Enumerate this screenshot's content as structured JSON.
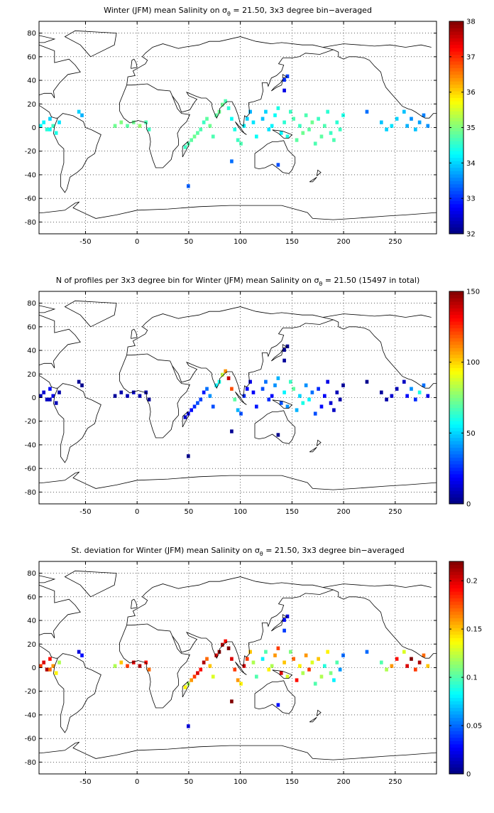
{
  "figure": {
    "background": "#ffffff"
  },
  "chart_data": [
    {
      "type": "heatmap",
      "title": "Winter (JFM) mean Salinity on σ",
      "title_sub": "θ",
      "title_tail": " = 21.50, 3x3 degree bin−averaged",
      "xlim": [
        -95,
        290
      ],
      "ylim": [
        -90,
        90
      ],
      "xticks": [
        -50,
        0,
        50,
        100,
        150,
        200,
        250
      ],
      "yticks": [
        -80,
        -60,
        -40,
        -20,
        0,
        20,
        40,
        60,
        80
      ],
      "grid": true,
      "colorbar": {
        "min": 32,
        "max": 38,
        "ticks": [
          32,
          33,
          34,
          35,
          36,
          37,
          38
        ],
        "colormap": "jet"
      },
      "cells": [
        [
          -95,
          0,
          34.3
        ],
        [
          -92,
          3,
          34.2
        ],
        [
          -89,
          -3,
          34.5
        ],
        [
          -86,
          6,
          34.0
        ],
        [
          -83,
          0,
          34.6
        ],
        [
          -80,
          -6,
          34.4
        ],
        [
          -77,
          3,
          34.1
        ],
        [
          -86,
          -3,
          34.3
        ],
        [
          -58,
          12,
          34.0
        ],
        [
          -55,
          9,
          33.8
        ],
        [
          -23,
          0,
          34.9
        ],
        [
          -17,
          3,
          35.0
        ],
        [
          -11,
          0,
          34.8
        ],
        [
          -5,
          3,
          34.9
        ],
        [
          1,
          0,
          35.1
        ],
        [
          7,
          3,
          34.7
        ],
        [
          10,
          -3,
          34.6
        ],
        [
          45,
          -18,
          34.6
        ],
        [
          48,
          -15,
          34.7
        ],
        [
          51,
          -12,
          34.8
        ],
        [
          54,
          -9,
          34.9
        ],
        [
          57,
          -6,
          34.8
        ],
        [
          60,
          -3,
          34.7
        ],
        [
          63,
          3,
          34.6
        ],
        [
          66,
          6,
          34.8
        ],
        [
          69,
          0,
          34.9
        ],
        [
          72,
          -9,
          34.7
        ],
        [
          75,
          9,
          34.8
        ],
        [
          78,
          12,
          34.9
        ],
        [
          81,
          18,
          34.9
        ],
        [
          84,
          21,
          34.7
        ],
        [
          87,
          15,
          34.5
        ],
        [
          90,
          6,
          34.3
        ],
        [
          93,
          -3,
          34.4
        ],
        [
          96,
          -12,
          34.6
        ],
        [
          99,
          -15,
          34.7
        ],
        [
          102,
          0,
          34.2
        ],
        [
          105,
          6,
          34.0
        ],
        [
          108,
          12,
          33.8
        ],
        [
          111,
          3,
          34.1
        ],
        [
          114,
          -9,
          34.3
        ],
        [
          120,
          6,
          33.9
        ],
        [
          123,
          12,
          34.0
        ],
        [
          126,
          -3,
          34.1
        ],
        [
          129,
          0,
          34.2
        ],
        [
          132,
          9,
          34.3
        ],
        [
          135,
          15,
          34.4
        ],
        [
          138,
          -6,
          34.2
        ],
        [
          141,
          3,
          34.5
        ],
        [
          144,
          -9,
          34.4
        ],
        [
          147,
          12,
          34.6
        ],
        [
          150,
          6,
          34.7
        ],
        [
          153,
          -12,
          34.8
        ],
        [
          156,
          0,
          34.6
        ],
        [
          159,
          -6,
          34.9
        ],
        [
          162,
          9,
          34.7
        ],
        [
          165,
          -3,
          34.8
        ],
        [
          168,
          3,
          34.9
        ],
        [
          171,
          -15,
          34.7
        ],
        [
          174,
          6,
          34.6
        ],
        [
          177,
          -9,
          34.8
        ],
        [
          180,
          0,
          34.7
        ],
        [
          183,
          12,
          34.5
        ],
        [
          186,
          -6,
          34.6
        ],
        [
          189,
          -12,
          34.7
        ],
        [
          192,
          3,
          34.5
        ],
        [
          195,
          -3,
          34.6
        ],
        [
          198,
          9,
          34.4
        ],
        [
          141,
          39,
          33.0
        ],
        [
          144,
          42,
          33.1
        ],
        [
          141,
          30,
          32.6
        ],
        [
          260,
          0,
          33.8
        ],
        [
          264,
          6,
          33.6
        ],
        [
          268,
          -3,
          33.9
        ],
        [
          272,
          3,
          33.7
        ],
        [
          276,
          9,
          33.5
        ],
        [
          280,
          0,
          33.6
        ],
        [
          257,
          12,
          33.9
        ],
        [
          250,
          6,
          34.0
        ],
        [
          245,
          0,
          34.1
        ],
        [
          240,
          -3,
          34.0
        ],
        [
          235,
          3,
          33.9
        ],
        [
          221,
          12,
          33.4
        ],
        [
          90,
          -30,
          33.4
        ],
        [
          48,
          -51,
          33.3
        ],
        [
          135,
          -33,
          33.2
        ]
      ]
    },
    {
      "type": "heatmap",
      "title": "N of profiles per 3x3 degree bin for Winter (JFM) mean Salinity on σ",
      "title_sub": "θ",
      "title_tail": " = 21.50 (15497 in total)",
      "xlim": [
        -95,
        290
      ],
      "ylim": [
        -90,
        90
      ],
      "xticks": [
        -50,
        0,
        50,
        100,
        150,
        200,
        250
      ],
      "yticks": [
        -80,
        -60,
        -40,
        -20,
        0,
        20,
        40,
        60,
        80
      ],
      "grid": true,
      "colorbar": {
        "min": 0,
        "max": 150,
        "ticks": [
          0,
          50,
          100,
          150
        ],
        "colormap": "jet"
      },
      "cells": [
        [
          -95,
          0,
          8
        ],
        [
          -92,
          3,
          12
        ],
        [
          -89,
          -3,
          10
        ],
        [
          -86,
          6,
          20
        ],
        [
          -83,
          0,
          15
        ],
        [
          -80,
          -6,
          8
        ],
        [
          -77,
          3,
          6
        ],
        [
          -86,
          -3,
          9
        ],
        [
          -58,
          12,
          3
        ],
        [
          -55,
          9,
          2
        ],
        [
          -23,
          0,
          4
        ],
        [
          -17,
          3,
          6
        ],
        [
          -11,
          0,
          8
        ],
        [
          -5,
          3,
          10
        ],
        [
          1,
          0,
          7
        ],
        [
          7,
          3,
          5
        ],
        [
          10,
          -3,
          3
        ],
        [
          45,
          -18,
          10
        ],
        [
          48,
          -15,
          18
        ],
        [
          51,
          -12,
          20
        ],
        [
          54,
          -9,
          25
        ],
        [
          57,
          -6,
          30
        ],
        [
          60,
          -3,
          28
        ],
        [
          63,
          3,
          22
        ],
        [
          66,
          6,
          35
        ],
        [
          69,
          0,
          40
        ],
        [
          72,
          -9,
          30
        ],
        [
          75,
          9,
          55
        ],
        [
          78,
          12,
          60
        ],
        [
          81,
          18,
          85
        ],
        [
          84,
          21,
          110
        ],
        [
          87,
          15,
          140
        ],
        [
          90,
          6,
          120
        ],
        [
          93,
          -3,
          70
        ],
        [
          96,
          -12,
          45
        ],
        [
          99,
          -15,
          30
        ],
        [
          102,
          0,
          25
        ],
        [
          105,
          6,
          20
        ],
        [
          108,
          12,
          15
        ],
        [
          111,
          3,
          18
        ],
        [
          114,
          -9,
          22
        ],
        [
          120,
          6,
          30
        ],
        [
          123,
          12,
          35
        ],
        [
          126,
          -3,
          25
        ],
        [
          129,
          0,
          20
        ],
        [
          132,
          9,
          40
        ],
        [
          135,
          15,
          45
        ],
        [
          138,
          -6,
          30
        ],
        [
          141,
          3,
          55
        ],
        [
          144,
          -9,
          40
        ],
        [
          147,
          12,
          65
        ],
        [
          150,
          6,
          70
        ],
        [
          153,
          -12,
          45
        ],
        [
          156,
          0,
          50
        ],
        [
          159,
          -6,
          60
        ],
        [
          162,
          9,
          40
        ],
        [
          165,
          -3,
          55
        ],
        [
          168,
          3,
          35
        ],
        [
          171,
          -15,
          30
        ],
        [
          174,
          6,
          25
        ],
        [
          177,
          -9,
          20
        ],
        [
          180,
          0,
          18
        ],
        [
          183,
          12,
          15
        ],
        [
          186,
          -6,
          12
        ],
        [
          189,
          -12,
          10
        ],
        [
          192,
          3,
          8
        ],
        [
          195,
          -3,
          6
        ],
        [
          198,
          9,
          4
        ],
        [
          141,
          39,
          3
        ],
        [
          144,
          42,
          2
        ],
        [
          141,
          30,
          4
        ],
        [
          260,
          0,
          20
        ],
        [
          264,
          6,
          40
        ],
        [
          268,
          -3,
          25
        ],
        [
          272,
          3,
          60
        ],
        [
          276,
          9,
          35
        ],
        [
          280,
          0,
          15
        ],
        [
          257,
          12,
          10
        ],
        [
          250,
          6,
          8
        ],
        [
          245,
          0,
          12
        ],
        [
          240,
          -3,
          6
        ],
        [
          235,
          3,
          4
        ],
        [
          221,
          12,
          2
        ],
        [
          90,
          -30,
          3
        ],
        [
          48,
          -51,
          2
        ],
        [
          135,
          -33,
          2
        ]
      ]
    },
    {
      "type": "heatmap",
      "title": "St. deviation for Winter (JFM) mean Salinity on σ",
      "title_sub": "θ",
      "title_tail": " = 21.50, 3x3 degree bin−averaged",
      "xlim": [
        -95,
        290
      ],
      "ylim": [
        -90,
        90
      ],
      "xticks": [
        -50,
        0,
        50,
        100,
        150,
        200,
        250
      ],
      "yticks": [
        -80,
        -60,
        -40,
        -20,
        0,
        20,
        40,
        60,
        80
      ],
      "grid": true,
      "colorbar": {
        "min": 0,
        "max": 0.22,
        "ticks": [
          0,
          0.05,
          0.1,
          0.15,
          0.2
        ],
        "colormap": "jet"
      },
      "cells": [
        [
          -95,
          0,
          0.18
        ],
        [
          -92,
          3,
          0.2
        ],
        [
          -89,
          -3,
          0.21
        ],
        [
          -86,
          6,
          0.19
        ],
        [
          -83,
          0,
          0.16
        ],
        [
          -80,
          -6,
          0.14
        ],
        [
          -77,
          3,
          0.12
        ],
        [
          -86,
          -3,
          0.17
        ],
        [
          -58,
          12,
          0.02
        ],
        [
          -55,
          9,
          0.03
        ],
        [
          -23,
          0,
          0.12
        ],
        [
          -17,
          3,
          0.15
        ],
        [
          -11,
          0,
          0.18
        ],
        [
          -5,
          3,
          0.2
        ],
        [
          1,
          0,
          0.21
        ],
        [
          7,
          3,
          0.19
        ],
        [
          10,
          -3,
          0.17
        ],
        [
          45,
          -18,
          0.14
        ],
        [
          48,
          -15,
          0.12
        ],
        [
          51,
          -12,
          0.16
        ],
        [
          54,
          -9,
          0.18
        ],
        [
          57,
          -6,
          0.2
        ],
        [
          60,
          -3,
          0.19
        ],
        [
          63,
          3,
          0.21
        ],
        [
          66,
          6,
          0.17
        ],
        [
          69,
          0,
          0.15
        ],
        [
          72,
          -9,
          0.13
        ],
        [
          75,
          9,
          0.2
        ],
        [
          78,
          12,
          0.22
        ],
        [
          81,
          18,
          0.21
        ],
        [
          84,
          21,
          0.19
        ],
        [
          87,
          15,
          0.22
        ],
        [
          90,
          6,
          0.2
        ],
        [
          93,
          -3,
          0.18
        ],
        [
          96,
          -12,
          0.16
        ],
        [
          99,
          -15,
          0.14
        ],
        [
          102,
          0,
          0.2
        ],
        [
          105,
          6,
          0.18
        ],
        [
          108,
          12,
          0.15
        ],
        [
          111,
          3,
          0.12
        ],
        [
          114,
          -9,
          0.1
        ],
        [
          120,
          6,
          0.08
        ],
        [
          123,
          12,
          0.1
        ],
        [
          126,
          -3,
          0.14
        ],
        [
          129,
          0,
          0.12
        ],
        [
          132,
          9,
          0.16
        ],
        [
          135,
          15,
          0.18
        ],
        [
          138,
          -6,
          0.2
        ],
        [
          141,
          3,
          0.15
        ],
        [
          144,
          -9,
          0.13
        ],
        [
          147,
          12,
          0.11
        ],
        [
          150,
          6,
          0.17
        ],
        [
          153,
          -12,
          0.19
        ],
        [
          156,
          0,
          0.14
        ],
        [
          159,
          -6,
          0.12
        ],
        [
          162,
          9,
          0.16
        ],
        [
          165,
          -3,
          0.18
        ],
        [
          168,
          3,
          0.13
        ],
        [
          171,
          -15,
          0.1
        ],
        [
          174,
          6,
          0.15
        ],
        [
          177,
          -9,
          0.12
        ],
        [
          180,
          0,
          0.09
        ],
        [
          183,
          12,
          0.14
        ],
        [
          186,
          -6,
          0.11
        ],
        [
          189,
          -12,
          0.08
        ],
        [
          192,
          3,
          0.1
        ],
        [
          195,
          -3,
          0.06
        ],
        [
          198,
          9,
          0.05
        ],
        [
          141,
          39,
          0.03
        ],
        [
          144,
          42,
          0.02
        ],
        [
          141,
          30,
          0.04
        ],
        [
          260,
          0,
          0.2
        ],
        [
          264,
          6,
          0.22
        ],
        [
          268,
          -3,
          0.18
        ],
        [
          272,
          3,
          0.21
        ],
        [
          276,
          9,
          0.17
        ],
        [
          280,
          0,
          0.15
        ],
        [
          257,
          12,
          0.13
        ],
        [
          250,
          6,
          0.19
        ],
        [
          245,
          0,
          0.16
        ],
        [
          240,
          -3,
          0.12
        ],
        [
          235,
          3,
          0.1
        ],
        [
          221,
          12,
          0.05
        ],
        [
          90,
          -30,
          0.22
        ],
        [
          48,
          -51,
          0.02
        ],
        [
          135,
          -33,
          0.03
        ]
      ]
    }
  ]
}
